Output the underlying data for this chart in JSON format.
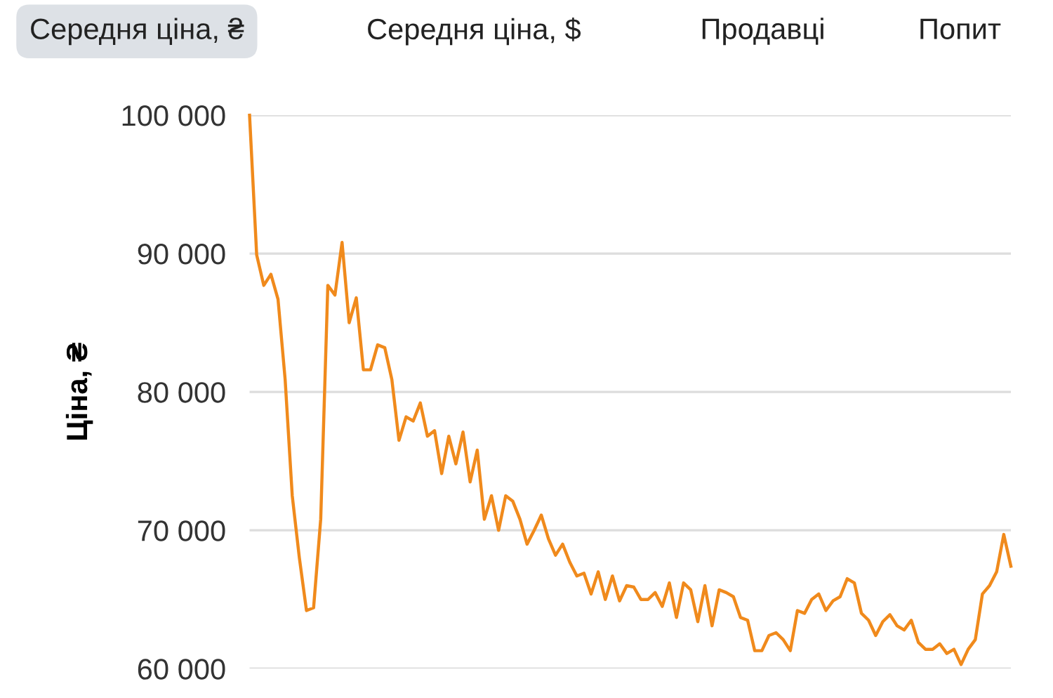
{
  "chart_data": {
    "type": "line",
    "ylabel": "Ціна, ₴",
    "annotations": [
      "Середня ціна, ₴",
      "Середня ціна, $",
      "Продавці",
      "Попит"
    ],
    "categories": [
      null,
      null,
      null,
      null,
      null,
      null,
      null,
      null,
      null,
      null,
      null,
      null,
      null,
      null,
      null,
      null,
      null,
      null,
      null,
      null,
      null,
      null,
      null,
      null,
      null,
      null,
      null,
      null,
      null,
      null,
      null,
      null,
      null,
      null,
      null,
      null,
      null,
      null,
      null,
      null,
      null,
      null,
      null,
      null,
      null,
      null,
      null,
      null,
      null,
      null,
      null,
      null,
      null,
      null,
      null,
      null,
      null,
      null,
      null,
      null,
      null,
      null,
      null,
      null,
      null,
      null,
      null,
      null,
      null,
      null,
      null,
      null,
      null,
      null,
      null,
      null,
      null,
      null,
      null,
      null,
      null,
      null,
      null,
      null,
      null,
      null,
      null,
      null,
      null,
      null,
      null,
      null,
      null,
      null,
      null,
      null,
      null,
      null,
      null,
      null,
      null,
      null,
      null,
      null,
      null,
      null,
      null,
      null
    ],
    "series": [
      {
        "color": "#f08a1c",
        "values": [
          100000,
          89900,
          87700,
          88500,
          86700,
          80900,
          72500,
          68000,
          64200,
          64400,
          70800,
          87700,
          87000,
          90800,
          85000,
          86800,
          81600,
          81600,
          83400,
          83200,
          80900,
          76500,
          78200,
          77900,
          79200,
          76800,
          77200,
          74100,
          76800,
          74800,
          77100,
          73500,
          75800,
          70800,
          72500,
          70000,
          72500,
          72100,
          70800,
          69000,
          70000,
          71100,
          69400,
          68200,
          69000,
          67700,
          66700,
          66900,
          65400,
          67000,
          65000,
          66700,
          64900,
          66000,
          65900,
          65000,
          65000,
          65500,
          64500,
          66200,
          63700,
          66200,
          65700,
          63400,
          66000,
          63100,
          65700,
          65500,
          65200,
          63700,
          63500,
          61300,
          61300,
          62400,
          62600,
          62100,
          61300,
          64200,
          64000,
          65000,
          65400,
          64200,
          64900,
          65200,
          66500,
          66200,
          64000,
          63500,
          62400,
          63400,
          63900,
          63100,
          62800,
          63500,
          61900,
          61400,
          61400,
          61800,
          61100,
          61400,
          60300,
          61400,
          62100,
          65400,
          66000,
          67000,
          69700,
          67400
        ]
      }
    ],
    "ylim": [
      60000,
      100000
    ],
    "yticks": [
      {
        "value": 60000,
        "label": "60 000"
      },
      {
        "value": 70000,
        "label": "70 000"
      },
      {
        "value": 80000,
        "label": "80 000"
      },
      {
        "value": 90000,
        "label": "90 000"
      },
      {
        "value": 100000,
        "label": "100 000"
      }
    ],
    "grid": "y"
  }
}
